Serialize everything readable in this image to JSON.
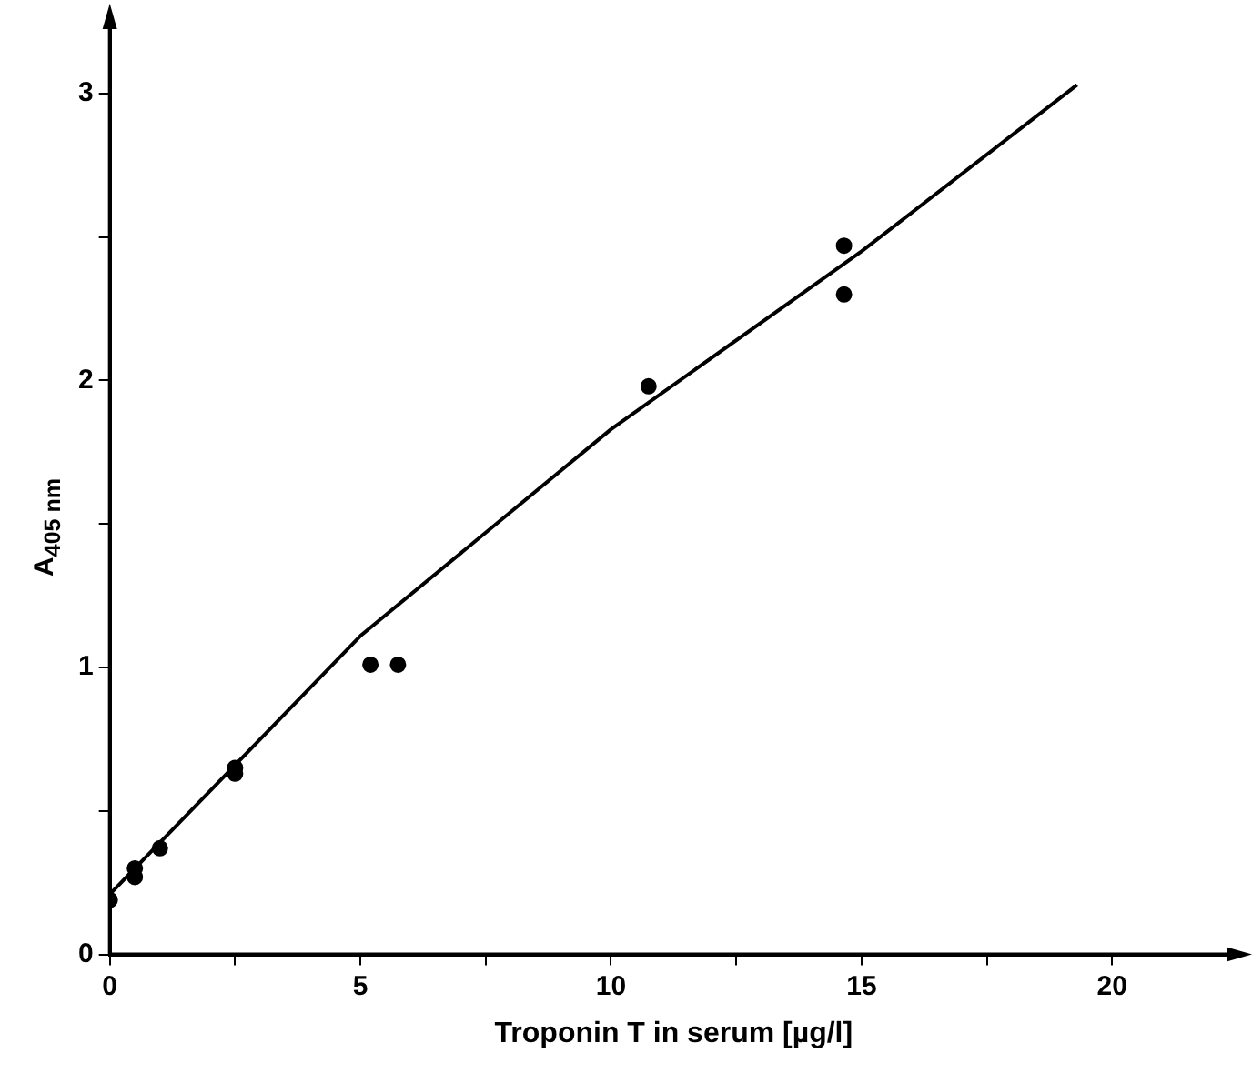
{
  "chart_data": {
    "type": "scatter",
    "xlabel": "Troponin T in serum [µg/l]",
    "ylabel": "A$_{405 nm}$",
    "xlim": [
      0,
      22.5
    ],
    "ylim": [
      0,
      3.25
    ],
    "xticks": [
      0,
      {
        "value": 2.5,
        "label": null
      },
      5,
      {
        "value": 7.5,
        "label": null
      },
      10,
      {
        "value": 12.5,
        "label": null
      },
      15,
      {
        "value": 17.5,
        "label": null
      },
      20
    ],
    "yticks": [
      0,
      {
        "value": 0.5,
        "label": null
      },
      1,
      {
        "value": 1.5,
        "label": null
      },
      2,
      {
        "value": 2.5,
        "label": null
      },
      3
    ],
    "grid": false,
    "legend": false,
    "marker": "circle",
    "series": [
      {
        "color": "#000000",
        "x": [
          0,
          0.5,
          0.5,
          1.0,
          2.5,
          2.5,
          5.2,
          5.75,
          10.75,
          14.65,
          14.65
        ],
        "values": [
          0.19,
          0.3,
          0.27,
          0.37,
          0.65,
          0.63,
          1.01,
          1.01,
          1.98,
          2.47,
          2.3
        ]
      },
      {
        "type": "line",
        "color": "#000000",
        "marker": "none",
        "line_style": "solid",
        "x": [
          0,
          5,
          10,
          15,
          19.3
        ],
        "values": [
          0.21,
          1.11,
          1.83,
          2.45,
          3.03
        ]
      }
    ]
  }
}
